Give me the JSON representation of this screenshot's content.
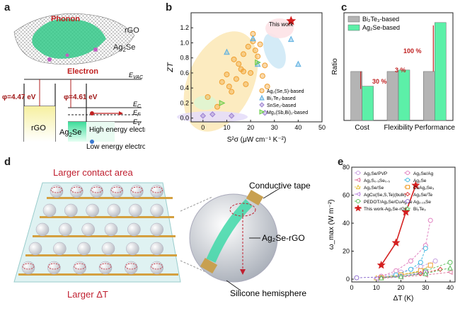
{
  "panels": {
    "a": {
      "letter": "a",
      "phonon": "Phonon",
      "rgo_top": "rGO",
      "ag2se_top": "Ag",
      "ag2se_top_sub": "2",
      "ag2se_top_tail": "Se",
      "electron": "Electron",
      "evac": "E",
      "evac_sub": "VAC",
      "phi1": "φ=4.47 eV",
      "phi2": "φ=4.61 eV",
      "ec": "E",
      "ec_sub": "C",
      "ef": "E",
      "ef_sub": "F",
      "ev": "E",
      "ev_sub": "V",
      "rgo_box": "rGO",
      "ag2se_box": "Ag",
      "ag2se_box_sub": "2",
      "ag2se_box_tail": "Se",
      "high": "High energy electron",
      "low": "Low energy electron"
    },
    "b": {
      "letter": "b",
      "this_work": "This work"
    },
    "c": {
      "letter": "c",
      "pct_cost": "30 %",
      "pct_flex": "3 %",
      "pct_perf": "100 %"
    },
    "d": {
      "letter": "d",
      "top": "Larger contact area",
      "bottom": "Larger ΔT",
      "tape": "Conductive tape",
      "agrgo": "Ag₂Se-rGO",
      "hemi": "Silicone hemisphere"
    },
    "e": {
      "letter": "e"
    }
  },
  "chart_data": [
    {
      "type": "scatter",
      "panel": "b",
      "xlabel": "S²σ (μW cm⁻¹ K⁻²)",
      "ylabel": "ZT",
      "xlim": [
        -5,
        50
      ],
      "ylim": [
        -0.05,
        1.4
      ],
      "xticks": [
        "0",
        "10",
        "20",
        "30",
        "40",
        "50"
      ],
      "yticks": [
        "0.0",
        "0.2",
        "0.4",
        "0.6",
        "0.8",
        "1.0",
        "1.2"
      ],
      "legend_position": "bottom-right",
      "series": [
        {
          "name": "Ag₂(Se,S)-based",
          "color": "#f0a030",
          "marker": "circle",
          "points": [
            [
              2,
              0.28
            ],
            [
              6,
              0.15
            ],
            [
              8,
              0.48
            ],
            [
              10,
              0.58
            ],
            [
              11,
              0.42
            ],
            [
              12,
              0.35
            ],
            [
              13,
              0.78
            ],
            [
              14,
              0.52
            ],
            [
              15,
              0.72
            ],
            [
              16,
              0.65
            ],
            [
              17,
              0.85
            ],
            [
              18,
              0.45
            ],
            [
              19,
              0.95
            ],
            [
              20,
              0.6
            ],
            [
              21,
              1.02
            ],
            [
              22,
              0.9
            ],
            [
              23,
              0.82
            ],
            [
              24,
              0.98
            ],
            [
              25,
              0.56
            ],
            [
              26,
              0.7
            ],
            [
              27,
              0.42
            ],
            [
              21,
              1.12
            ],
            [
              17,
              0.62
            ]
          ]
        },
        {
          "name": "Bi₂Te₃-based",
          "color": "#5aaee0",
          "marker": "triangle",
          "points": [
            [
              10,
              0.88
            ],
            [
              21,
              1.06
            ],
            [
              23,
              0.72
            ],
            [
              37,
              1.05
            ],
            [
              40,
              0.72
            ]
          ]
        },
        {
          "name": "SnSe₂-based",
          "color": "#9b7fd0",
          "marker": "diamond",
          "points": [
            [
              0,
              0.03
            ],
            [
              4,
              0.05
            ],
            [
              12,
              0.03
            ],
            [
              26,
              0.07
            ]
          ]
        },
        {
          "name": "Mg₃(Sb,Bi)₂-based",
          "color": "#66cc44",
          "marker": "triangle-right",
          "points": [
            [
              8,
              0.2
            ],
            [
              23,
              0.74
            ]
          ]
        },
        {
          "name": "This work",
          "color": "#d42020",
          "marker": "star",
          "points": [
            [
              37,
              1.29
            ]
          ]
        }
      ]
    },
    {
      "type": "bar",
      "panel": "c",
      "ylabel": "Ratio",
      "categories": [
        "Cost",
        "Flexibility",
        "Performance"
      ],
      "series": [
        {
          "name": "Bi₂Te₃-based",
          "color": "#b4b4b4",
          "values": [
            1.0,
            1.0,
            1.0
          ]
        },
        {
          "name": "Ag₂Se-based",
          "color": "#5cf0a8",
          "values": [
            0.7,
            1.03,
            2.0
          ]
        }
      ],
      "ylim": [
        0,
        2.2
      ],
      "legend_position": "top-left"
    },
    {
      "type": "line",
      "panel": "e",
      "xlabel": "ΔT (K)",
      "ylabel": "ω_max (W m⁻²)",
      "xlim": [
        0,
        42
      ],
      "ylim": [
        -2,
        80
      ],
      "xticks": [
        "0",
        "10",
        "20",
        "30",
        "40"
      ],
      "yticks": [
        "0",
        "20",
        "40",
        "60",
        "80"
      ],
      "series": [
        {
          "name": "Ag₂Se/PVP",
          "color": "#c8a0e0",
          "marker": "circle",
          "points": [
            [
              12,
              2
            ],
            [
              20,
              5
            ],
            [
              28,
              9
            ],
            [
              34,
              13
            ]
          ]
        },
        {
          "name": "Ag₂S₀.₅Se₀.₅",
          "color": "#e07aa0",
          "marker": "triangle-left",
          "points": [
            [
              10,
              0.5
            ],
            [
              20,
              1.5
            ],
            [
              30,
              3
            ],
            [
              40,
              5
            ]
          ]
        },
        {
          "name": "Ag₂Se/Se",
          "color": "#e8c040",
          "marker": "triangle",
          "points": [
            [
              10,
              1
            ],
            [
              20,
              3
            ],
            [
              30,
              6
            ]
          ]
        },
        {
          "name": "AgCu(Se,S,Te)(bulk)",
          "color": "#c090e0",
          "marker": "triangle-left",
          "points": [
            [
              10,
              0.5
            ],
            [
              20,
              2
            ],
            [
              30,
              4
            ]
          ]
        },
        {
          "name": "PEDOT/Ag₂Se/CuAgSe",
          "color": "#60c060",
          "marker": "circle",
          "points": [
            [
              12,
              1
            ],
            [
              20,
              3
            ],
            [
              30,
              6
            ],
            [
              40,
              12
            ]
          ]
        },
        {
          "name": "This work-Ag₂Se-rGO",
          "color": "#d42020",
          "marker": "star",
          "points": [
            [
              12,
              10
            ],
            [
              18,
              26
            ],
            [
              22,
              48
            ],
            [
              26,
              67
            ]
          ]
        },
        {
          "name": "Ag₂Se/Ag",
          "color": "#e080c0",
          "marker": "circle",
          "points": [
            [
              12,
              2
            ],
            [
              18,
              6
            ],
            [
              24,
              13
            ],
            [
              30,
              24
            ],
            [
              32,
              42
            ]
          ]
        },
        {
          "name": "Ag₂Se",
          "color": "#40b8e0",
          "marker": "circle",
          "points": [
            [
              12,
              1
            ],
            [
              18,
              3
            ],
            [
              24,
              7
            ],
            [
              28,
              12
            ],
            [
              30,
              22
            ]
          ]
        },
        {
          "name": "CuAg₂Se₃",
          "color": "#f0a030",
          "marker": "square",
          "points": [
            [
              12,
              1
            ],
            [
              20,
              3
            ],
            [
              28,
              6
            ],
            [
              32,
              10
            ]
          ]
        },
        {
          "name": "Ag₂Se/Te",
          "color": "#e04040",
          "marker": "diamond",
          "points": [
            [
              12,
              1
            ],
            [
              20,
              2
            ],
            [
              28,
              4
            ],
            [
              36,
              7
            ]
          ]
        },
        {
          "name": "Ag₂.₁₅Se",
          "color": "#9070d0",
          "marker": "pentagon",
          "points": [
            [
              2,
              1
            ],
            [
              20,
              2
            ],
            [
              30,
              5
            ]
          ]
        },
        {
          "name": "Bi₂Te₃",
          "color": "#60c060",
          "marker": "triangle",
          "points": [
            [
              12,
              1
            ],
            [
              20,
              2
            ],
            [
              30,
              4
            ],
            [
              40,
              8
            ]
          ]
        }
      ]
    }
  ]
}
